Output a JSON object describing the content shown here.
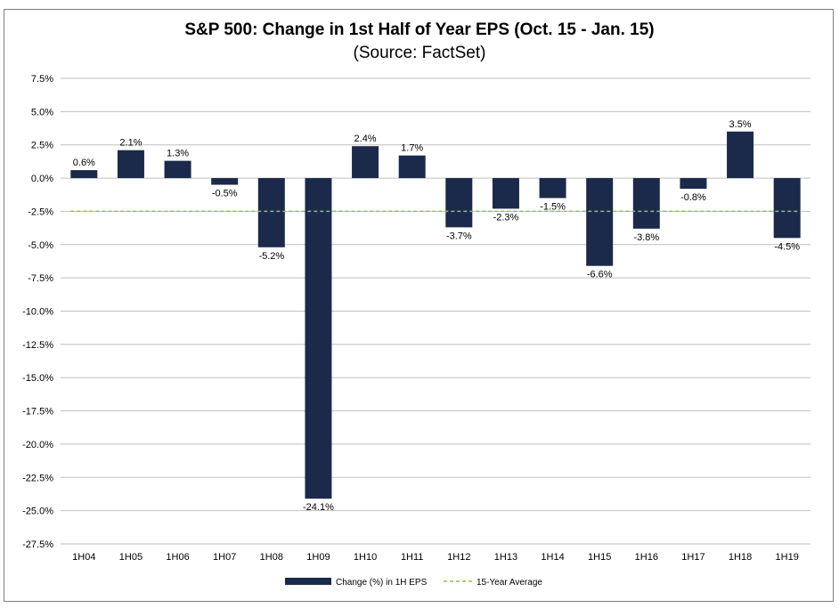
{
  "chart_data": {
    "type": "bar",
    "title": "S&P 500: Change in 1st Half of Year EPS (Oct. 15 - Jan. 15)",
    "subtitle": "(Source: FactSet)",
    "categories": [
      "1H04",
      "1H05",
      "1H06",
      "1H07",
      "1H08",
      "1H09",
      "1H10",
      "1H11",
      "1H12",
      "1H13",
      "1H14",
      "1H15",
      "1H16",
      "1H17",
      "1H18",
      "1H19"
    ],
    "series": [
      {
        "name": "Change (%) in 1H EPS",
        "color": "#1b2a4a",
        "values": [
          0.6,
          2.1,
          1.3,
          -0.5,
          -5.2,
          -24.1,
          2.4,
          1.7,
          -3.7,
          -2.3,
          -1.5,
          -6.6,
          -3.8,
          -0.8,
          3.5,
          -4.5
        ],
        "labels": [
          "0.6%",
          "2.1%",
          "1.3%",
          "-0.5%",
          "-5.2%",
          "-24.1%",
          "2.4%",
          "1.7%",
          "-3.7%",
          "-2.3%",
          "-1.5%",
          "-6.6%",
          "-3.8%",
          "-0.8%",
          "3.5%",
          "-4.5%"
        ]
      }
    ],
    "reference_line": {
      "name": "15-Year Average",
      "value": -2.5,
      "color": "#8dc63f",
      "style": "dashed"
    },
    "ylim": [
      -27.5,
      7.5
    ],
    "yticks": [
      7.5,
      5.0,
      2.5,
      0.0,
      -2.5,
      -5.0,
      -7.5,
      -10.0,
      -12.5,
      -15.0,
      -17.5,
      -20.0,
      -22.5,
      -25.0,
      -27.5
    ],
    "ytick_labels": [
      "7.5%",
      "5.0%",
      "2.5%",
      "0.0%",
      "-2.5%",
      "-5.0%",
      "-7.5%",
      "-10.0%",
      "-12.5%",
      "-15.0%",
      "-17.5%",
      "-20.0%",
      "-22.5%",
      "-25.0%",
      "-27.5%"
    ],
    "grid": true,
    "legend": "bottom"
  }
}
